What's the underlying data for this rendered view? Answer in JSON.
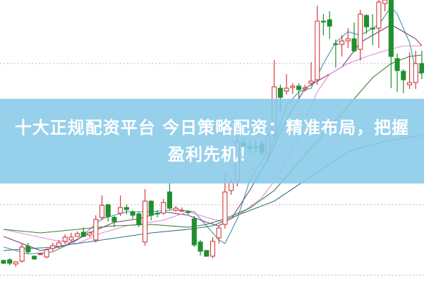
{
  "banner": {
    "line1": "十大正规配资平台 今日策略配资：精准布局，把握",
    "line2": "盈利先机！"
  },
  "chart_data": {
    "type": "candlestick",
    "title": "",
    "grid": "horizontal-dotted",
    "ylim": [
      0,
      100
    ],
    "colors": {
      "up": "#d23a3a",
      "down": "#1f8f2f",
      "grid": "#b8b8b8",
      "banner": "#87cae8"
    },
    "candles": [
      [
        7.75,
        8,
        6.5,
        6.75
      ],
      [
        8,
        8.5,
        6,
        6.75
      ],
      [
        6.5,
        7.5,
        5.5,
        7.25
      ],
      [
        7.5,
        13.75,
        7,
        12.5
      ],
      [
        12.75,
        14,
        10,
        10.75
      ],
      [
        9.25,
        9.5,
        8,
        8.25
      ],
      [
        10,
        10.3,
        9.8,
        10.1
      ],
      [
        9,
        12,
        8.5,
        11.5
      ],
      [
        12,
        14,
        11,
        13
      ],
      [
        12.75,
        15,
        12,
        14
      ],
      [
        14.5,
        17,
        13.5,
        16
      ],
      [
        15,
        17.5,
        14,
        16
      ],
      [
        16.25,
        18,
        16,
        17.25
      ],
      [
        17.75,
        19.5,
        16,
        16.25
      ],
      [
        16.75,
        18,
        16,
        17.5
      ],
      [
        15,
        23.75,
        14,
        22.25
      ],
      [
        23,
        30.75,
        22,
        27.25
      ],
      [
        27.5,
        27.75,
        21.5,
        23.25
      ],
      [
        23,
        23.5,
        19.5,
        21.5
      ],
      [
        24.5,
        30.75,
        23.5,
        26.5
      ],
      [
        26.5,
        27.5,
        24,
        25.75
      ],
      [
        25,
        25.5,
        22.5,
        23.75
      ],
      [
        24.25,
        25,
        19.5,
        20.5
      ],
      [
        14.25,
        33,
        13,
        28.75
      ],
      [
        28.75,
        29,
        22,
        23.75
      ],
      [
        24.5,
        25.5,
        23,
        24.4
      ],
      [
        24.5,
        29.5,
        24,
        28.25
      ],
      [
        32,
        35.25,
        25.5,
        26.25
      ],
      [
        25.5,
        27,
        25,
        26.25
      ],
      [
        25.5,
        26.5,
        25,
        25.5
      ],
      [
        25,
        25.5,
        24,
        24.9
      ],
      [
        22.5,
        23.5,
        12.5,
        13.25
      ],
      [
        14.25,
        15,
        9.5,
        11
      ],
      [
        11.25,
        11.5,
        9,
        9.25
      ],
      [
        9.25,
        16,
        8.5,
        14.5
      ],
      [
        15.75,
        20,
        13.75,
        19.25
      ],
      [
        20.5,
        38.5,
        19,
        32
      ],
      [
        32.5,
        37,
        31,
        35.5
      ],
      [
        35.75,
        52,
        34,
        49.75
      ],
      [
        49.5,
        51,
        45,
        48.25
      ],
      [
        48,
        50,
        45.5,
        47.5
      ],
      [
        48,
        50,
        46,
        47.8
      ],
      [
        49,
        50,
        44.75,
        46
      ],
      [
        45.75,
        53,
        43.5,
        51.75
      ],
      [
        52,
        78.75,
        51,
        69.25
      ],
      [
        68.75,
        70,
        60,
        65.5
      ],
      [
        67.75,
        73.75,
        66.5,
        68.75
      ],
      [
        69,
        70.5,
        66.75,
        69.5
      ],
      [
        69.5,
        70.5,
        64,
        68.25
      ],
      [
        68.5,
        70,
        67.5,
        68.9
      ],
      [
        70.5,
        78,
        69.5,
        71.25
      ],
      [
        71.75,
        98,
        70,
        92.5
      ],
      [
        92.5,
        95,
        87.5,
        92.3
      ],
      [
        93,
        96,
        86.25,
        90.75
      ],
      [
        84.5,
        86,
        76,
        84.3
      ],
      [
        84.25,
        87.5,
        80,
        85.5
      ],
      [
        85.5,
        90,
        83,
        86.25
      ],
      [
        86.25,
        92,
        81.5,
        82
      ],
      [
        82.5,
        96.5,
        78.5,
        95
      ],
      [
        94.5,
        95,
        88,
        90.5
      ],
      [
        90,
        95,
        84,
        89.9
      ],
      [
        90,
        100,
        83,
        99.25
      ],
      [
        98.75,
        100,
        96,
        100
      ],
      [
        100,
        100,
        68.75,
        80
      ],
      [
        79.25,
        81,
        67.5,
        75
      ],
      [
        74.75,
        75.5,
        67,
        71.75
      ],
      [
        70,
        81.5,
        68.5,
        70.75
      ],
      [
        70.75,
        82,
        68.5,
        77.5
      ],
      [
        77.5,
        82,
        72,
        74.25
      ]
    ],
    "moving_averages": [
      {
        "color": "#3a97a8",
        "points": [
          [
            0,
            12.5
          ],
          [
            4,
            10
          ],
          [
            8,
            10.75
          ],
          [
            12,
            15
          ],
          [
            16,
            22.5
          ],
          [
            20,
            25
          ],
          [
            24,
            25
          ],
          [
            28,
            25.75
          ],
          [
            31,
            25
          ],
          [
            33,
            20
          ],
          [
            35,
            15
          ],
          [
            36,
            13.75
          ],
          [
            38,
            22.5
          ],
          [
            40,
            36
          ],
          [
            44,
            50
          ],
          [
            46,
            62.5
          ],
          [
            48,
            67.5
          ],
          [
            50,
            68.75
          ],
          [
            52,
            77.5
          ],
          [
            54,
            85
          ],
          [
            56,
            88.75
          ],
          [
            58,
            87.5
          ],
          [
            61,
            91.25
          ],
          [
            63,
            97.5
          ],
          [
            64,
            95
          ],
          [
            66,
            85
          ],
          [
            67,
            75
          ],
          [
            68,
            73.75
          ]
        ]
      },
      {
        "color": "#7a3f6e",
        "points": [
          [
            0,
            16.25
          ],
          [
            6,
            11.25
          ],
          [
            10,
            13
          ],
          [
            14,
            17.5
          ],
          [
            18,
            21.25
          ],
          [
            22,
            22.5
          ],
          [
            26,
            25
          ],
          [
            30,
            23.75
          ],
          [
            33,
            21.25
          ],
          [
            35,
            20
          ],
          [
            37,
            22.5
          ],
          [
            40,
            32.5
          ],
          [
            43,
            43.75
          ],
          [
            46,
            57.5
          ],
          [
            49,
            68.75
          ],
          [
            52,
            72.5
          ],
          [
            55,
            76.25
          ],
          [
            58,
            85
          ],
          [
            61,
            88.75
          ],
          [
            63,
            91.25
          ],
          [
            65,
            88.75
          ],
          [
            67,
            86.25
          ],
          [
            68,
            83.75
          ]
        ]
      },
      {
        "color": "#e08ad8",
        "points": [
          [
            0,
            18.75
          ],
          [
            8,
            15
          ],
          [
            12,
            13.75
          ],
          [
            16,
            17.5
          ],
          [
            20,
            20
          ],
          [
            26,
            22
          ],
          [
            30,
            25
          ],
          [
            33,
            23
          ],
          [
            36,
            21.25
          ],
          [
            39,
            25
          ],
          [
            42,
            30
          ],
          [
            45,
            38.75
          ],
          [
            48,
            52.5
          ],
          [
            51,
            67.5
          ],
          [
            53,
            73.75
          ],
          [
            56,
            77.5
          ],
          [
            59,
            80
          ],
          [
            62,
            82
          ],
          [
            65,
            83.75
          ],
          [
            68,
            83.75
          ]
        ]
      },
      {
        "color": "#3d7a3d",
        "points": [
          [
            0,
            18.75
          ],
          [
            6,
            17.5
          ],
          [
            12,
            18.75
          ],
          [
            18,
            20
          ],
          [
            24,
            20.5
          ],
          [
            30,
            19.5
          ],
          [
            33,
            20.5
          ],
          [
            36,
            22.5
          ],
          [
            40,
            26.25
          ],
          [
            44,
            32.5
          ],
          [
            48,
            42.5
          ],
          [
            52,
            52.5
          ],
          [
            56,
            62.5
          ],
          [
            60,
            72.5
          ],
          [
            63,
            77.5
          ],
          [
            66,
            80
          ],
          [
            68,
            80.5
          ]
        ]
      },
      {
        "color": "#2f7080",
        "points": [
          [
            0,
            11.25
          ],
          [
            8,
            12.5
          ],
          [
            16,
            15
          ],
          [
            24,
            17.5
          ],
          [
            30,
            18.75
          ],
          [
            34,
            20
          ],
          [
            38,
            23.75
          ],
          [
            44,
            28.75
          ],
          [
            50,
            37.5
          ],
          [
            56,
            46.25
          ],
          [
            62,
            50
          ],
          [
            68,
            52
          ]
        ]
      }
    ],
    "gridlines": [
      77.5,
      52.5,
      27.5,
      2.5
    ]
  }
}
